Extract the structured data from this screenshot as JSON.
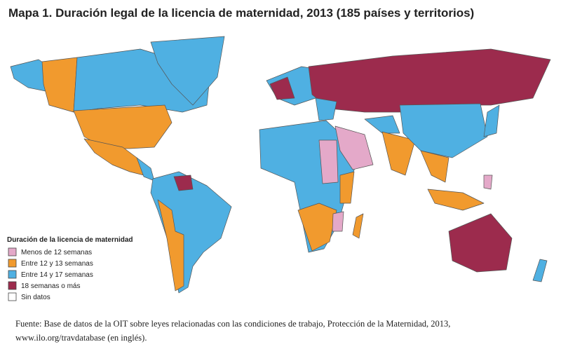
{
  "title": "Mapa 1.  Duración legal de la licencia de maternidad, 2013 (185 países y territorios)",
  "legend": {
    "title": "Duración de la licencia de maternidad",
    "items": [
      {
        "label": "Menos de 12 semanas",
        "color": "#e4a9c9"
      },
      {
        "label": "Entre 12 y 13 semanas",
        "color": "#f19a2e"
      },
      {
        "label": "Entre 14 y 17 semanas",
        "color": "#4fb0e2"
      },
      {
        "label": "18 semanas o más",
        "color": "#9c2b4d"
      },
      {
        "label": "Sin datos",
        "color": "#ffffff"
      }
    ]
  },
  "source": {
    "lines": [
      "Fuente: Base de datos de la OIT sobre leyes relacionadas con las condiciones de trabajo, Protección de la Maternidad, 2013,",
      "www.ilo.org/travdatabase (en inglés)."
    ]
  }
}
